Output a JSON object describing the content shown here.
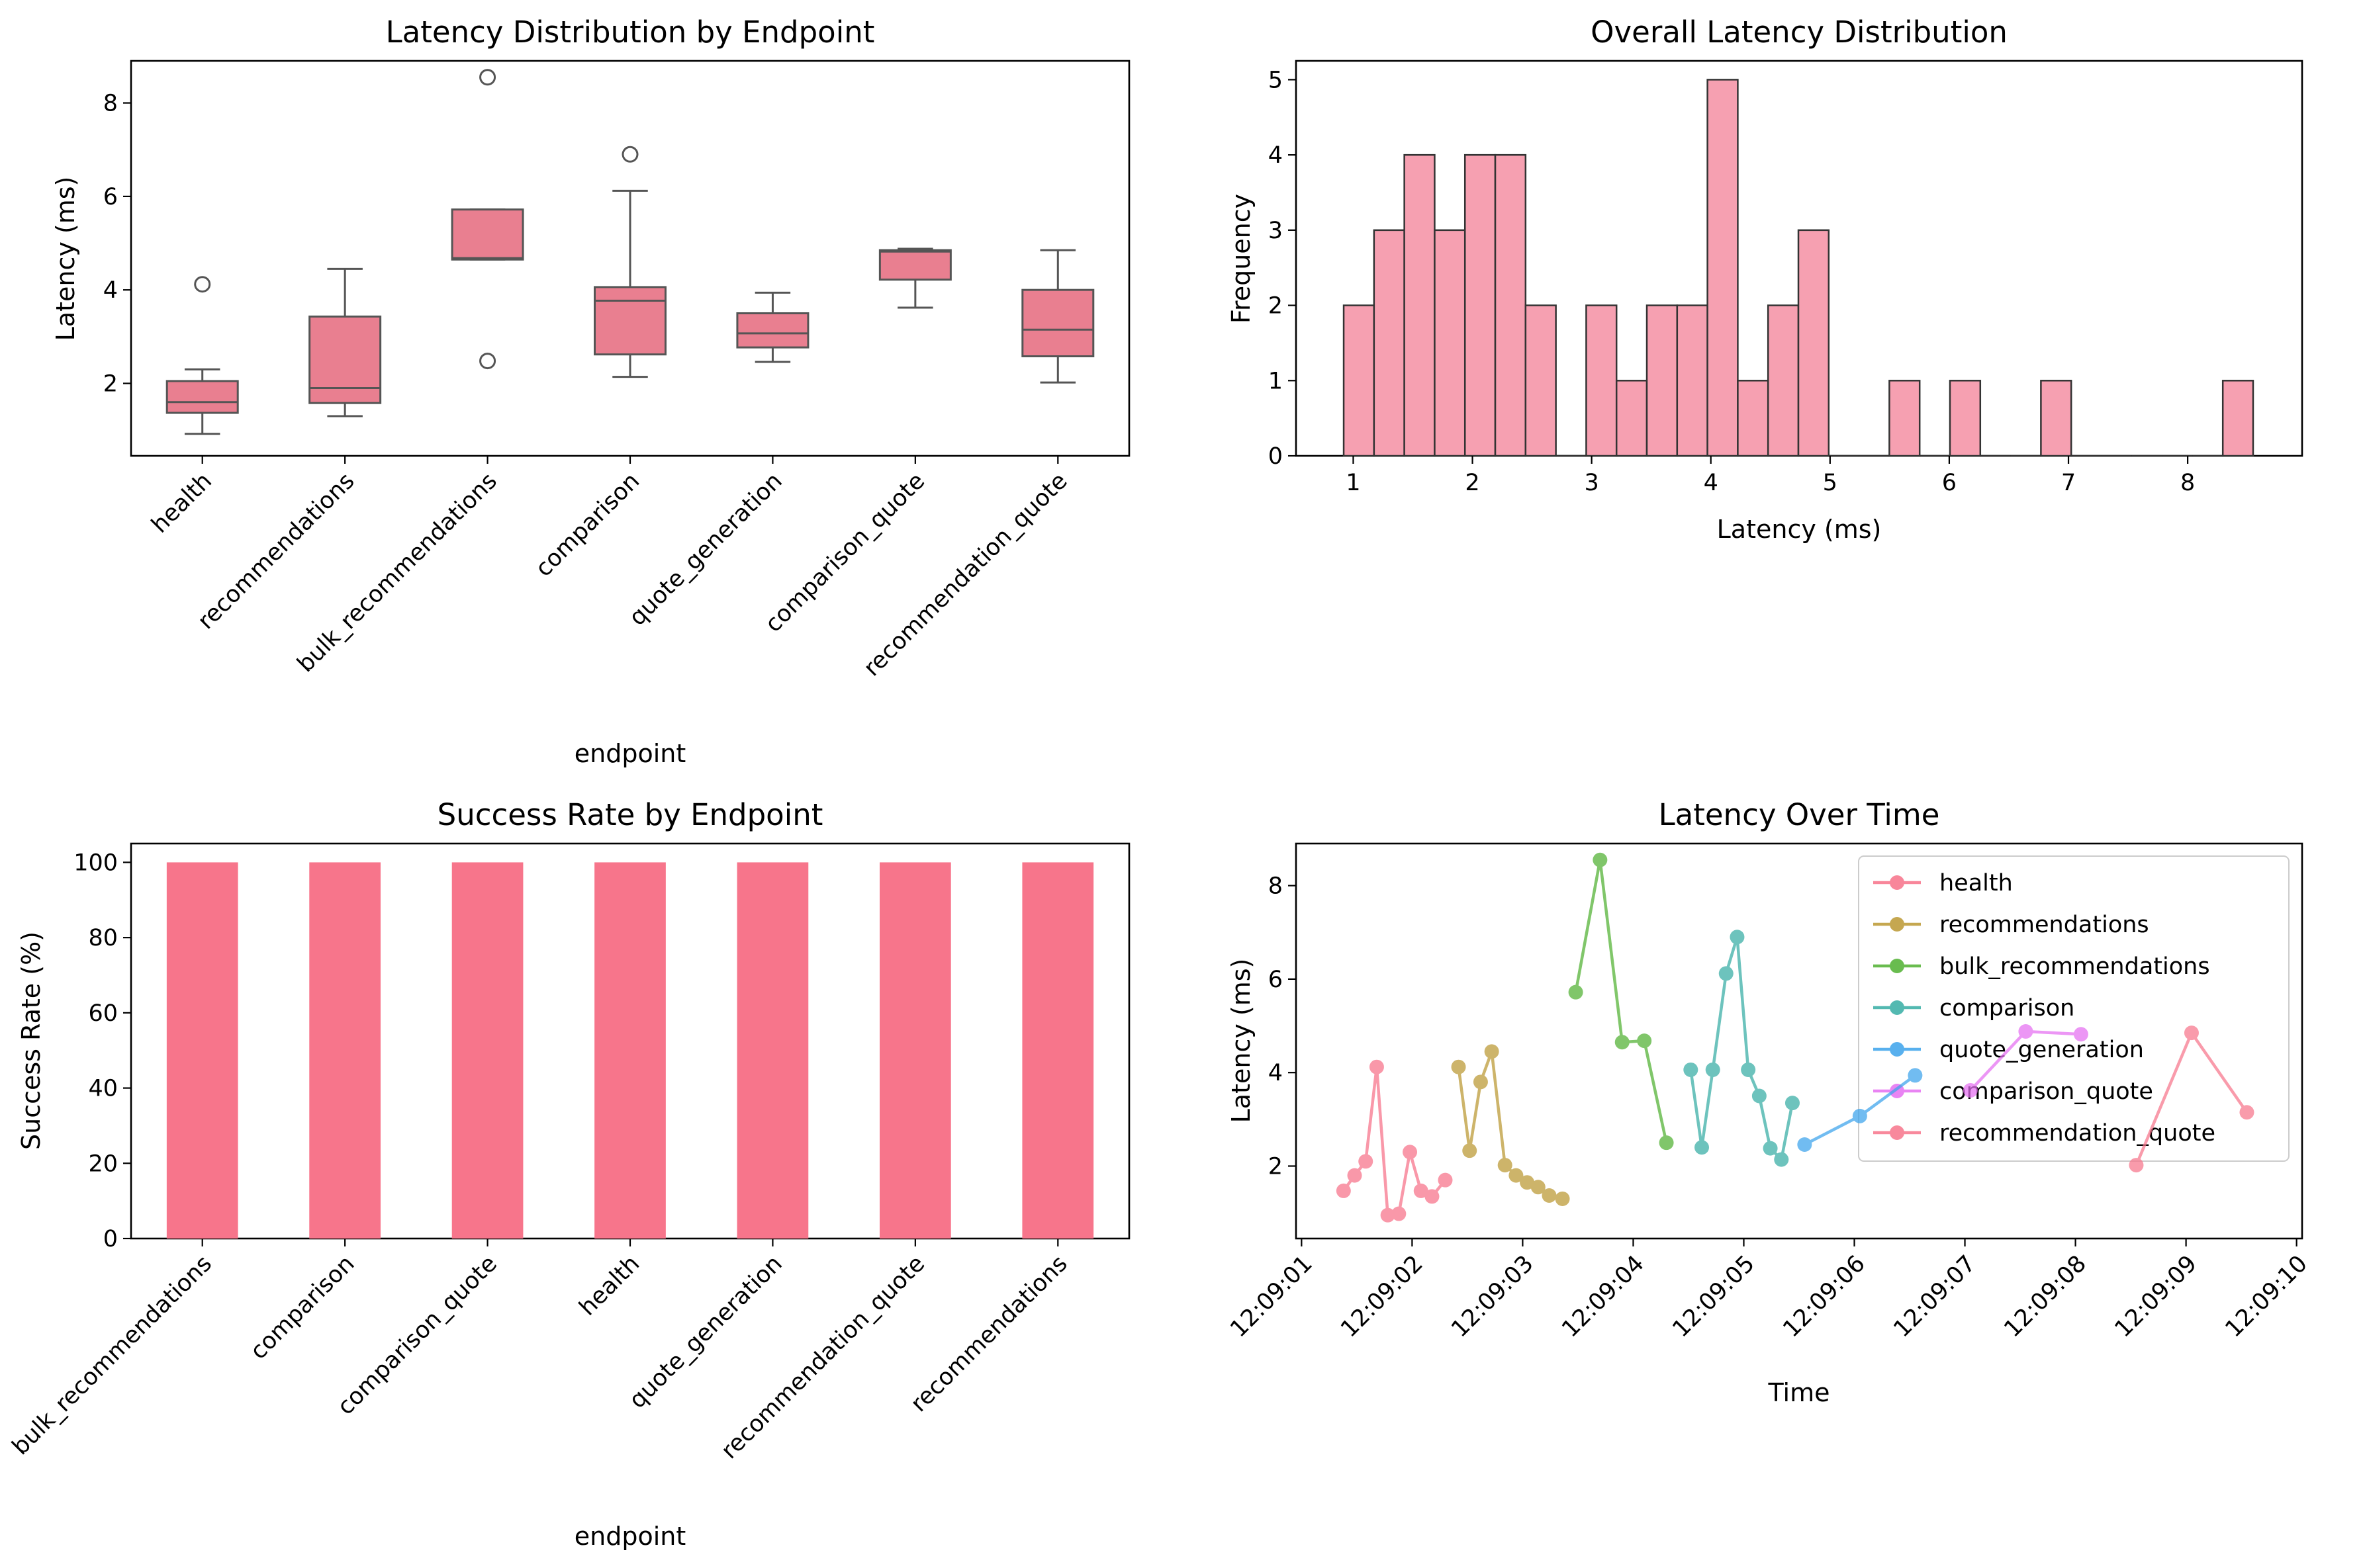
{
  "chart_data": [
    {
      "id": "box",
      "type": "box",
      "title": "Latency Distribution by Endpoint",
      "xlabel": "endpoint",
      "ylabel": "Latency (ms)",
      "ylim": [
        0.45,
        8.9
      ],
      "yticks": [
        2,
        4,
        6,
        8
      ],
      "color": "#e97f90",
      "categories": [
        "health",
        "recommendations",
        "bulk_recommendations",
        "comparison",
        "quote_generation",
        "comparison_quote",
        "recommendation_quote"
      ],
      "boxes": [
        {
          "whislo": 0.92,
          "q1": 1.37,
          "med": 1.6,
          "q3": 2.05,
          "whishi": 2.3,
          "fliers": [
            4.12
          ]
        },
        {
          "whislo": 1.3,
          "q1": 1.58,
          "med": 1.9,
          "q3": 3.43,
          "whishi": 4.45,
          "fliers": []
        },
        {
          "whislo": 4.65,
          "q1": 4.65,
          "med": 4.68,
          "q3": 5.72,
          "whishi": 5.72,
          "fliers": [
            8.55,
            2.48
          ]
        },
        {
          "whislo": 2.14,
          "q1": 2.62,
          "med": 3.77,
          "q3": 4.06,
          "whishi": 6.12,
          "fliers": [
            6.9
          ]
        },
        {
          "whislo": 2.46,
          "q1": 2.77,
          "med": 3.07,
          "q3": 3.5,
          "whishi": 3.94,
          "fliers": []
        },
        {
          "whislo": 3.62,
          "q1": 4.22,
          "med": 4.82,
          "q3": 4.85,
          "whishi": 4.88,
          "fliers": []
        },
        {
          "whislo": 2.02,
          "q1": 2.58,
          "med": 3.15,
          "q3": 4.0,
          "whishi": 4.85,
          "fliers": []
        }
      ]
    },
    {
      "id": "hist",
      "type": "bar",
      "title": "Overall Latency Distribution",
      "xlabel": "Latency (ms)",
      "ylabel": "Frequency",
      "xlim": [
        0.52,
        8.96
      ],
      "ylim": [
        0,
        5.25
      ],
      "xticks": [
        1,
        2,
        3,
        4,
        5,
        6,
        7,
        8
      ],
      "yticks": [
        0,
        1,
        2,
        3,
        4,
        5
      ],
      "color": "#f6a0b1",
      "bin_start": 0.92,
      "bin_width": 0.2543,
      "counts": [
        2,
        3,
        4,
        3,
        4,
        4,
        2,
        0,
        2,
        1,
        2,
        2,
        5,
        1,
        2,
        3,
        0,
        0,
        1,
        0,
        1,
        0,
        0,
        1,
        0,
        0,
        0,
        0,
        0,
        1
      ]
    },
    {
      "id": "success",
      "type": "bar",
      "title": "Success Rate by Endpoint",
      "xlabel": "endpoint",
      "ylabel": "Success Rate (%)",
      "ylim": [
        0,
        105
      ],
      "yticks": [
        0,
        20,
        40,
        60,
        80,
        100
      ],
      "color": "#f7758b",
      "categories": [
        "bulk_recommendations",
        "comparison",
        "comparison_quote",
        "health",
        "quote_generation",
        "recommendation_quote",
        "recommendations"
      ],
      "values": [
        100,
        100,
        100,
        100,
        100,
        100,
        100
      ]
    },
    {
      "id": "time",
      "type": "line",
      "title": "Latency Over Time",
      "xlabel": "Time",
      "ylabel": "Latency (ms)",
      "xlim": [
        "12:09:00.95",
        "12:09:10.05"
      ],
      "ylim": [
        0.45,
        8.9
      ],
      "yticks": [
        2,
        4,
        6,
        8
      ],
      "xticks": [
        "12:09:01",
        "12:09:02",
        "12:09:03",
        "12:09:04",
        "12:09:05",
        "12:09:06",
        "12:09:07",
        "12:09:08",
        "12:09:09",
        "12:09:10"
      ],
      "legend_position": "top-right",
      "series": [
        {
          "name": "health",
          "color": "#f77189",
          "x": [
            "12:09:01.38",
            "12:09:01.48",
            "12:09:01.58",
            "12:09:01.68",
            "12:09:01.78",
            "12:09:01.88",
            "12:09:01.98",
            "12:09:02.08",
            "12:09:02.18",
            "12:09:02.30"
          ],
          "y": [
            1.47,
            1.8,
            2.1,
            4.12,
            0.95,
            0.98,
            2.3,
            1.47,
            1.35,
            1.7
          ]
        },
        {
          "name": "recommendations",
          "color": "#bb9832",
          "x": [
            "12:09:02.42",
            "12:09:02.52",
            "12:09:02.62",
            "12:09:02.72",
            "12:09:02.84",
            "12:09:02.94",
            "12:09:03.04",
            "12:09:03.14",
            "12:09:03.24",
            "12:09:03.36"
          ],
          "y": [
            4.12,
            2.33,
            3.8,
            4.45,
            2.02,
            1.8,
            1.65,
            1.55,
            1.37,
            1.3
          ]
        },
        {
          "name": "bulk_recommendations",
          "color": "#50b131",
          "x": [
            "12:09:03.48",
            "12:09:03.70",
            "12:09:03.90",
            "12:09:04.10",
            "12:09:04.30"
          ],
          "y": [
            5.72,
            8.55,
            4.65,
            4.68,
            2.5
          ]
        },
        {
          "name": "comparison",
          "color": "#36ada4",
          "x": [
            "12:09:04.52",
            "12:09:04.62",
            "12:09:04.72",
            "12:09:04.84",
            "12:09:04.94",
            "12:09:05.04",
            "12:09:05.14",
            "12:09:05.24",
            "12:09:05.34",
            "12:09:05.44"
          ],
          "y": [
            4.06,
            2.4,
            4.06,
            6.12,
            6.9,
            4.06,
            3.5,
            2.38,
            2.14,
            3.35
          ]
        },
        {
          "name": "quote_generation",
          "color": "#3ba3ec",
          "x": [
            "12:09:05.55",
            "12:09:06.05",
            "12:09:06.55"
          ],
          "y": [
            2.46,
            3.07,
            3.94
          ]
        },
        {
          "name": "comparison_quote",
          "color": "#e66ff2",
          "x": [
            "12:09:07.05",
            "12:09:07.55",
            "12:09:08.05"
          ],
          "y": [
            3.62,
            4.88,
            4.82
          ]
        },
        {
          "name": "recommendation_quote",
          "color": "#f7758b",
          "x": [
            "12:09:08.55",
            "12:09:09.05",
            "12:09:09.55"
          ],
          "y": [
            2.02,
            4.85,
            3.15
          ]
        }
      ]
    }
  ]
}
